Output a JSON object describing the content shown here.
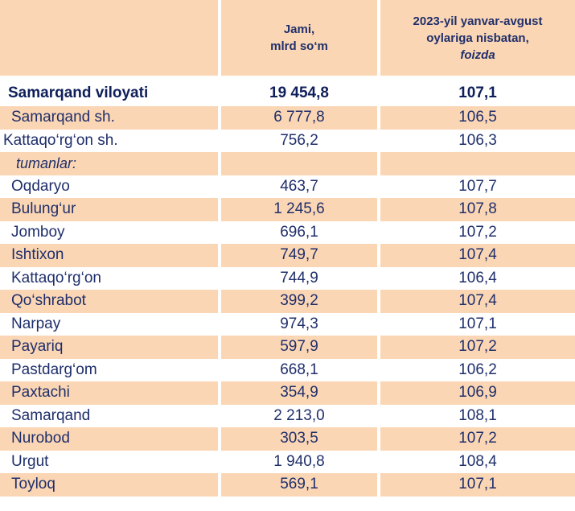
{
  "header": {
    "col2_line1": "Jami,",
    "col2_line2": "mlrd so‘m",
    "col3_line1": "2023-yil yanvar-avgust",
    "col3_line2": "oylariga nisbatan,",
    "col3_line3": "foizda"
  },
  "total": {
    "name": "Samarqand viloyati",
    "value": "19 454,8",
    "percent": "107,1"
  },
  "cities": [
    {
      "name": "Samarqand sh.",
      "value": "6 777,8",
      "percent": "106,5"
    },
    {
      "name": "Kattaqo‘rg‘on sh.",
      "value": "756,2",
      "percent": "106,3"
    }
  ],
  "districts_label": "tumanlar:",
  "districts": [
    {
      "name": "Oqdaryo",
      "value": "463,7",
      "percent": "107,7"
    },
    {
      "name": "Bulung‘ur",
      "value": "1 245,6",
      "percent": "107,8"
    },
    {
      "name": "Jomboy",
      "value": "696,1",
      "percent": "107,2"
    },
    {
      "name": "Ishtixon",
      "value": "749,7",
      "percent": "107,4"
    },
    {
      "name": "Kattaqo‘rg‘on",
      "value": "744,9",
      "percent": "106,4"
    },
    {
      "name": "Qo‘shrabot",
      "value": "399,2",
      "percent": "107,4"
    },
    {
      "name": "Narpay",
      "value": "974,3",
      "percent": "107,1"
    },
    {
      "name": "Payariq",
      "value": "597,9",
      "percent": "107,2"
    },
    {
      "name": "Pastdarg‘om",
      "value": "668,1",
      "percent": "106,2"
    },
    {
      "name": "Paxtachi",
      "value": "354,9",
      "percent": "106,9"
    },
    {
      "name": "Samarqand",
      "value": "2 213,0",
      "percent": "108,1"
    },
    {
      "name": "Nurobod",
      "value": "303,5",
      "percent": "107,2"
    },
    {
      "name": "Urgut",
      "value": "1 940,8",
      "percent": "108,4"
    },
    {
      "name": "Toyloq",
      "value": "569,1",
      "percent": "107,1"
    }
  ]
}
